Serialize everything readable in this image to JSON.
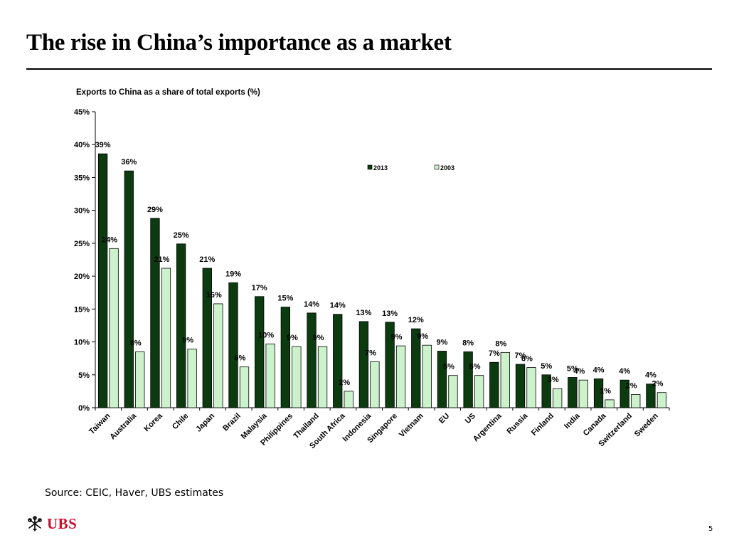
{
  "slide": {
    "title": "The rise in China’s importance as a market",
    "source": "Source: CEIC, Haver, UBS estimates",
    "logo_text": "UBS",
    "page_number": "5"
  },
  "colors": {
    "series_2013": "#0b3b0f",
    "series_2003": "#ccf2cc",
    "logo_red": "#c8102e"
  },
  "chart_data": {
    "type": "bar",
    "title": "Exports to China as a share of total exports (%)",
    "xlabel": "",
    "ylabel": "",
    "ylim": [
      0,
      45
    ],
    "y_ticks": [
      0,
      5,
      10,
      15,
      20,
      25,
      30,
      35,
      40,
      45
    ],
    "y_tick_labels": [
      "0%",
      "5%",
      "10%",
      "15%",
      "20%",
      "25%",
      "30%",
      "35%",
      "40%",
      "45%"
    ],
    "grid": false,
    "legend_position": "top-center",
    "categories": [
      "Taiwan",
      "Australia",
      "Korea",
      "Chile",
      "Japan",
      "Brazil",
      "Malaysia",
      "Philippines",
      "Thailand",
      "South Africa",
      "Indonesia",
      "Singapore",
      "Vietnam",
      "EU",
      "US",
      "Argentina",
      "Russia",
      "Finland",
      "India",
      "Canada",
      "Switzerland",
      "Sweden"
    ],
    "series": [
      {
        "name": "2013",
        "values": [
          38.6,
          36.0,
          28.8,
          24.9,
          21.2,
          19.0,
          16.9,
          15.3,
          14.4,
          14.2,
          13.1,
          13.0,
          12.0,
          8.6,
          8.5,
          6.9,
          6.6,
          5.0,
          4.6,
          4.4,
          4.2,
          3.6
        ],
        "labels": [
          "39%",
          "36%",
          "29%",
          "25%",
          "21%",
          "19%",
          "17%",
          "15%",
          "14%",
          "14%",
          "13%",
          "13%",
          "12%",
          "9%",
          "8%",
          "7%",
          "7%",
          "5%",
          "5%",
          "4%",
          "4%",
          "4%"
        ]
      },
      {
        "name": "2003",
        "values": [
          24.2,
          8.5,
          21.2,
          8.9,
          15.8,
          6.2,
          9.7,
          9.3,
          9.3,
          2.5,
          7.0,
          9.4,
          9.5,
          4.9,
          4.9,
          8.4,
          6.1,
          2.9,
          4.2,
          1.2,
          2.0,
          2.3
        ],
        "labels": [
          "24%",
          "8%",
          "21%",
          "9%",
          "16%",
          "6%",
          "10%",
          "9%",
          "9%",
          "2%",
          "7%",
          "9%",
          "9%",
          "5%",
          "5%",
          "8%",
          "6%",
          "3%",
          "4%",
          "1%",
          "2%",
          "2%"
        ]
      }
    ]
  }
}
